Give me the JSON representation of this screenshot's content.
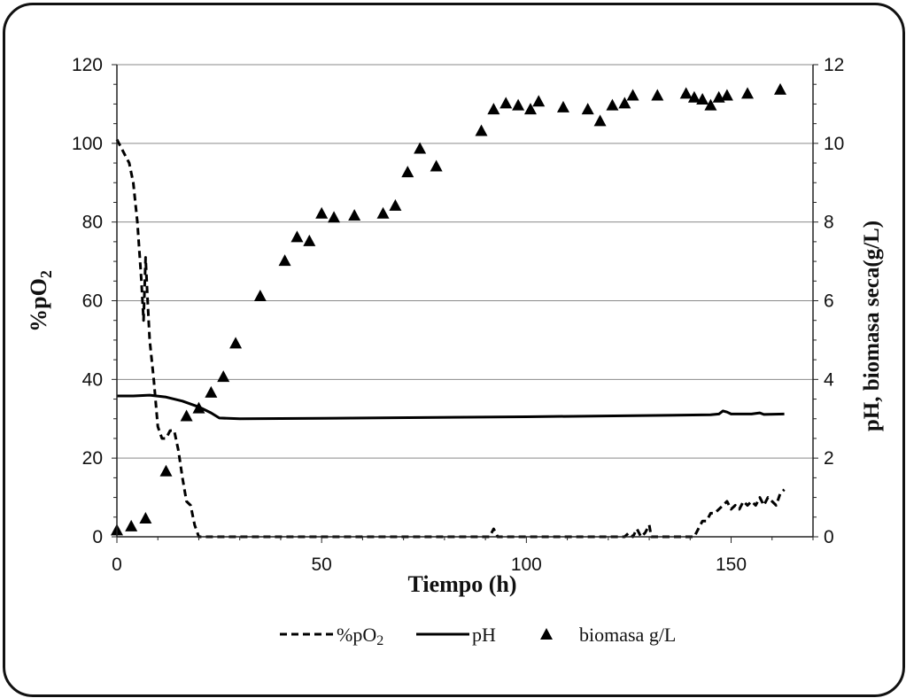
{
  "chart_data": {
    "type": "line",
    "xlabel": "Tiempo (h)",
    "ylabel_left": "%pO",
    "ylabel_left_sub": "2",
    "ylabel_right": "pH, biomasa seca(g/L)",
    "xlim": [
      0,
      170
    ],
    "ylim_left": [
      0,
      120
    ],
    "ylim_right": [
      0,
      12
    ],
    "x_ticks": [
      0,
      50,
      100,
      150
    ],
    "y_ticks_left": [
      0,
      20,
      40,
      60,
      80,
      100,
      120
    ],
    "y_ticks_right": [
      0,
      2,
      4,
      6,
      8,
      10,
      12
    ],
    "grid": "horizontal",
    "legend_position": "bottom",
    "legend": {
      "po2": {
        "text": "%pO",
        "sub": "2"
      },
      "ph": {
        "text": "pH"
      },
      "biomasa": {
        "text": "biomasa g/L"
      }
    },
    "series": [
      {
        "name": "%pO2",
        "axis": "left",
        "style": "dashed",
        "color": "#000000",
        "points": [
          [
            0,
            101
          ],
          [
            1,
            99
          ],
          [
            2,
            97
          ],
          [
            3,
            95
          ],
          [
            4,
            90
          ],
          [
            5,
            80
          ],
          [
            6,
            65
          ],
          [
            6.5,
            55
          ],
          [
            7,
            71
          ],
          [
            7.5,
            60
          ],
          [
            8,
            50
          ],
          [
            8.5,
            45
          ],
          [
            9,
            40
          ],
          [
            10,
            28
          ],
          [
            11,
            25
          ],
          [
            12,
            25
          ],
          [
            13,
            27
          ],
          [
            14,
            27
          ],
          [
            15,
            22
          ],
          [
            16,
            15
          ],
          [
            17,
            9
          ],
          [
            18,
            8
          ],
          [
            19,
            3
          ],
          [
            20,
            0
          ],
          [
            40,
            0
          ],
          [
            60,
            0
          ],
          [
            80,
            0
          ],
          [
            91,
            0
          ],
          [
            92,
            2
          ],
          [
            93,
            0
          ],
          [
            110,
            0
          ],
          [
            124,
            0
          ],
          [
            125,
            1
          ],
          [
            126,
            0
          ],
          [
            127,
            2
          ],
          [
            128,
            0
          ],
          [
            129,
            1
          ],
          [
            130,
            3
          ],
          [
            130.5,
            0
          ],
          [
            140,
            0
          ],
          [
            141,
            0
          ],
          [
            142,
            2
          ],
          [
            143,
            4
          ],
          [
            144,
            4
          ],
          [
            145,
            6
          ],
          [
            146,
            6
          ],
          [
            147,
            7
          ],
          [
            148,
            8
          ],
          [
            149,
            9
          ],
          [
            150,
            7
          ],
          [
            151,
            8
          ],
          [
            152,
            7
          ],
          [
            153,
            9
          ],
          [
            154,
            8
          ],
          [
            155,
            9
          ],
          [
            156,
            8
          ],
          [
            157,
            10
          ],
          [
            158,
            8
          ],
          [
            159,
            10
          ],
          [
            160,
            9
          ],
          [
            161,
            8
          ],
          [
            162,
            11
          ],
          [
            163,
            12
          ]
        ]
      },
      {
        "name": "pH",
        "axis": "right",
        "style": "solid",
        "color": "#000000",
        "points": [
          [
            0,
            3.58
          ],
          [
            4,
            3.58
          ],
          [
            8,
            3.6
          ],
          [
            12,
            3.55
          ],
          [
            16,
            3.45
          ],
          [
            20,
            3.3
          ],
          [
            23,
            3.15
          ],
          [
            25,
            3.02
          ],
          [
            30,
            3.0
          ],
          [
            50,
            3.01
          ],
          [
            100,
            3.05
          ],
          [
            145,
            3.1
          ],
          [
            147,
            3.12
          ],
          [
            148,
            3.2
          ],
          [
            149,
            3.17
          ],
          [
            150,
            3.12
          ],
          [
            155,
            3.12
          ],
          [
            157,
            3.15
          ],
          [
            158,
            3.11
          ],
          [
            163,
            3.12
          ]
        ]
      },
      {
        "name": "biomasa g/L",
        "axis": "right",
        "style": "triangle",
        "color": "#000000",
        "points": [
          [
            0,
            0.15
          ],
          [
            3.5,
            0.25
          ],
          [
            7,
            0.45
          ],
          [
            12,
            1.65
          ],
          [
            17,
            3.05
          ],
          [
            20,
            3.25
          ],
          [
            23,
            3.65
          ],
          [
            26,
            4.05
          ],
          [
            29,
            4.9
          ],
          [
            35,
            6.1
          ],
          [
            41,
            7.0
          ],
          [
            44,
            7.6
          ],
          [
            47,
            7.5
          ],
          [
            50,
            8.2
          ],
          [
            53,
            8.1
          ],
          [
            58,
            8.15
          ],
          [
            65,
            8.2
          ],
          [
            68,
            8.4
          ],
          [
            71,
            9.25
          ],
          [
            74,
            9.85
          ],
          [
            78,
            9.4
          ],
          [
            89,
            10.3
          ],
          [
            92,
            10.85
          ],
          [
            95,
            11.0
          ],
          [
            98,
            10.95
          ],
          [
            101,
            10.85
          ],
          [
            103,
            11.05
          ],
          [
            109,
            10.9
          ],
          [
            115,
            10.85
          ],
          [
            118,
            10.55
          ],
          [
            121,
            10.95
          ],
          [
            124,
            11.0
          ],
          [
            126,
            11.2
          ],
          [
            132,
            11.2
          ],
          [
            139,
            11.25
          ],
          [
            141,
            11.15
          ],
          [
            143,
            11.1
          ],
          [
            145,
            10.95
          ],
          [
            147,
            11.15
          ],
          [
            149,
            11.2
          ],
          [
            154,
            11.25
          ],
          [
            162,
            11.35
          ]
        ]
      }
    ]
  }
}
